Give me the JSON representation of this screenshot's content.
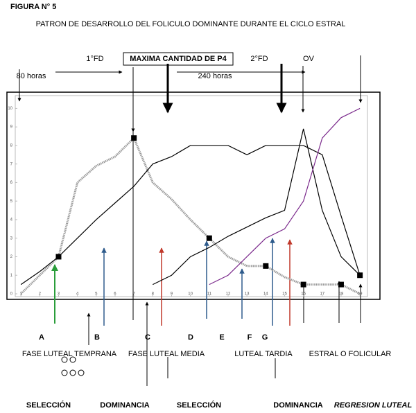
{
  "figure_label": "FIGURA N° 5",
  "chart_data": {
    "type": "line",
    "title": "PATRON DE DESARROLLO DEL FOLICULO DOMINANTE DURANTE EL CICLO ESTRAL",
    "x": [
      1,
      2,
      3,
      4,
      5,
      6,
      7,
      8,
      9,
      10,
      11,
      12,
      13,
      14,
      15,
      16,
      17,
      18,
      19
    ],
    "xlim": [
      0.7,
      19.4
    ],
    "xticks": [
      1,
      2,
      3,
      4,
      5,
      6,
      7,
      8,
      9,
      10,
      11,
      12,
      13,
      14,
      15,
      16,
      17,
      18,
      19
    ],
    "ylim": [
      -0.15,
      10.8
    ],
    "yticks": [
      0,
      1,
      2,
      3,
      4,
      5,
      6,
      7,
      8,
      9,
      10
    ],
    "series": [
      {
        "color": "#999999",
        "dash": true,
        "values": [
          0,
          1,
          2,
          6,
          6.9,
          7.4,
          8.4,
          6,
          5.1,
          4,
          3,
          2,
          1.5,
          1.5,
          0.9,
          0.5,
          0.5,
          0.5,
          0
        ],
        "markers": [
          2,
          6,
          10,
          13,
          15,
          17
        ]
      },
      {
        "color": "#000000",
        "dash": false,
        "values": [
          0.5,
          1.2,
          2,
          3,
          4,
          4.9,
          5.8,
          7,
          7.4,
          8,
          8,
          8,
          7.5,
          8,
          8,
          8,
          7.5,
          4.2,
          1
        ],
        "markers": [
          18
        ]
      },
      {
        "color": "#000000",
        "dash": false,
        "values": [
          null,
          null,
          null,
          null,
          null,
          null,
          null,
          0.5,
          1,
          2,
          2.5,
          3.1,
          3.6,
          4.1,
          4.5,
          8.9,
          4.5,
          2,
          1
        ],
        "markers": []
      },
      {
        "color": "#7b2a8c",
        "dash": false,
        "values": [
          null,
          null,
          null,
          null,
          null,
          null,
          null,
          null,
          null,
          null,
          0.5,
          1,
          2,
          3,
          3.5,
          5,
          8.4,
          9.5,
          10
        ],
        "markers": []
      }
    ],
    "annotations": [
      "1°FD",
      "MAXIMA CANTIDAD DE P4",
      "2°FD",
      "OV",
      "80 horas",
      "240 horas",
      "A",
      "B",
      "C",
      "D",
      "E",
      "F",
      "G",
      "FASE LUTEAL TEMPRANA",
      "FASE LUTEAL MEDIA",
      "LUTEAL TARDIA",
      "ESTRAL O FOLICULAR",
      "SELECCIÓN",
      "DOMINANCIA",
      "SELECCIÓN",
      "DOMINANCIA",
      "REGRESION LUTEAL"
    ]
  }
}
